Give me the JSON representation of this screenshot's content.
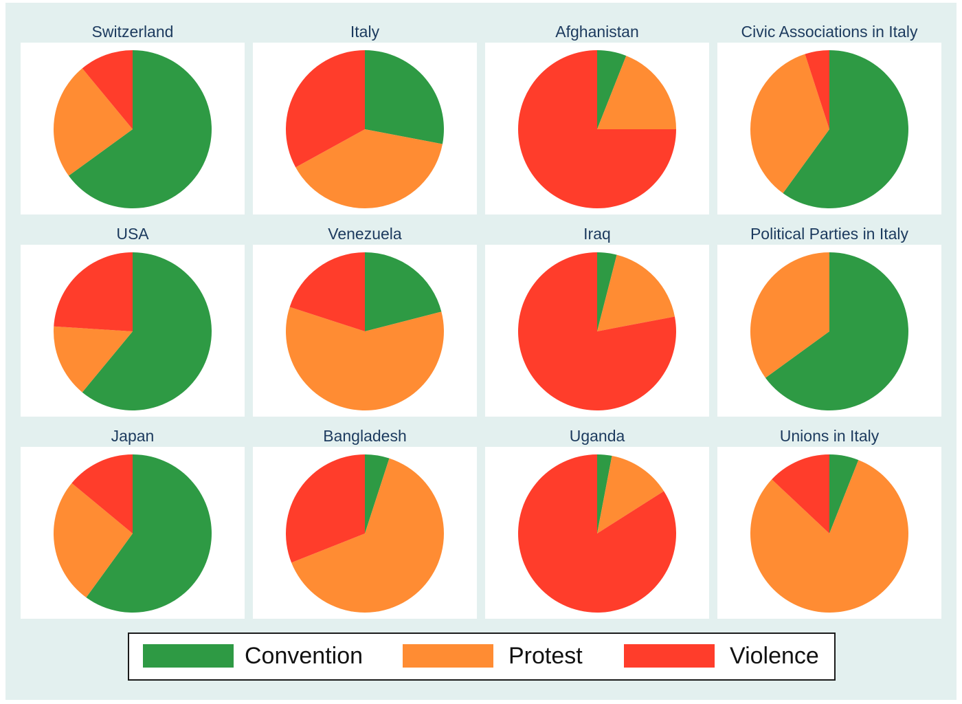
{
  "colors": {
    "Convention": "#2e9a44",
    "Protest": "#ff8c33",
    "Violence": "#ff3d2b"
  },
  "legend": {
    "items": [
      "Convention",
      "Protest",
      "Violence"
    ]
  },
  "chart_data": [
    {
      "type": "pie",
      "title": "Switzerland",
      "categories": [
        "Convention",
        "Protest",
        "Violence"
      ],
      "values": [
        65,
        24,
        11
      ]
    },
    {
      "type": "pie",
      "title": "Italy",
      "categories": [
        "Convention",
        "Protest",
        "Violence"
      ],
      "values": [
        28,
        39,
        33
      ]
    },
    {
      "type": "pie",
      "title": "Afghanistan",
      "categories": [
        "Convention",
        "Protest",
        "Violence"
      ],
      "values": [
        6,
        19,
        75
      ]
    },
    {
      "type": "pie",
      "title": "Civic Associations in Italy",
      "categories": [
        "Convention",
        "Protest",
        "Violence"
      ],
      "values": [
        60,
        35,
        5
      ]
    },
    {
      "type": "pie",
      "title": "USA",
      "categories": [
        "Convention",
        "Protest",
        "Violence"
      ],
      "values": [
        61,
        15,
        24
      ]
    },
    {
      "type": "pie",
      "title": "Venezuela",
      "categories": [
        "Convention",
        "Protest",
        "Violence"
      ],
      "values": [
        21,
        59,
        20
      ]
    },
    {
      "type": "pie",
      "title": "Iraq",
      "categories": [
        "Convention",
        "Protest",
        "Violence"
      ],
      "values": [
        4,
        18,
        78
      ]
    },
    {
      "type": "pie",
      "title": "Political Parties in Italy",
      "categories": [
        "Convention",
        "Protest",
        "Violence"
      ],
      "values": [
        65,
        35,
        0
      ]
    },
    {
      "type": "pie",
      "title": "Japan",
      "categories": [
        "Convention",
        "Protest",
        "Violence"
      ],
      "values": [
        60,
        26,
        14
      ]
    },
    {
      "type": "pie",
      "title": "Bangladesh",
      "categories": [
        "Convention",
        "Protest",
        "Violence"
      ],
      "values": [
        5,
        64,
        31
      ]
    },
    {
      "type": "pie",
      "title": "Uganda",
      "categories": [
        "Convention",
        "Protest",
        "Violence"
      ],
      "values": [
        3,
        13,
        84
      ]
    },
    {
      "type": "pie",
      "title": "Unions in Italy",
      "categories": [
        "Convention",
        "Protest",
        "Violence"
      ],
      "values": [
        6,
        81,
        13
      ]
    }
  ]
}
